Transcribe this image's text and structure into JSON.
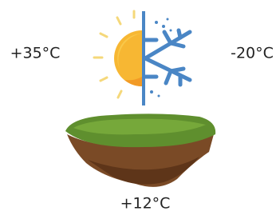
{
  "labels": {
    "hot": "+35°C",
    "cold": "-20°C",
    "ground": "+12°C"
  }
}
